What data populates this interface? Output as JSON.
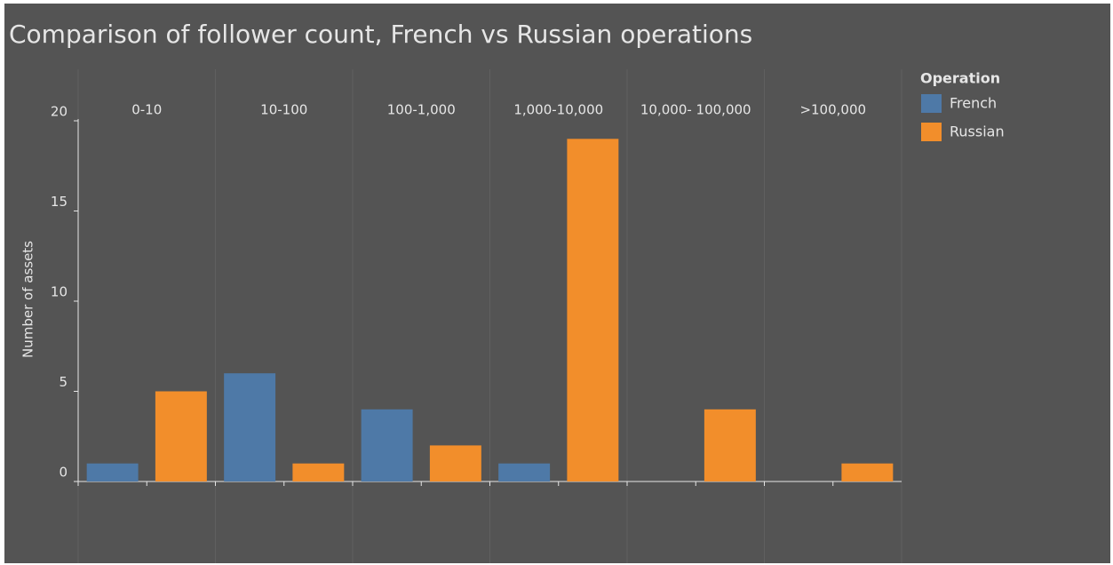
{
  "chart_data": {
    "type": "bar",
    "title": "Comparison of follower count,  French vs Russian operations",
    "y_label": "Number of assets",
    "legend_title": "Operation",
    "categories": [
      "0-10",
      "10-100",
      "100-1,000",
      "1,000-10,000",
      "10,000- 100,000",
      ">100,000"
    ],
    "series": [
      {
        "name": "French",
        "color": "#4e79a7",
        "values": [
          1,
          6,
          4,
          1,
          0,
          0
        ]
      },
      {
        "name": "Russian",
        "color": "#f28e2b",
        "values": [
          5,
          1,
          2,
          19,
          4,
          1
        ]
      }
    ],
    "ylim": [
      0,
      20
    ],
    "yticks": [
      0,
      5,
      10,
      15,
      20
    ],
    "legend": "right"
  }
}
